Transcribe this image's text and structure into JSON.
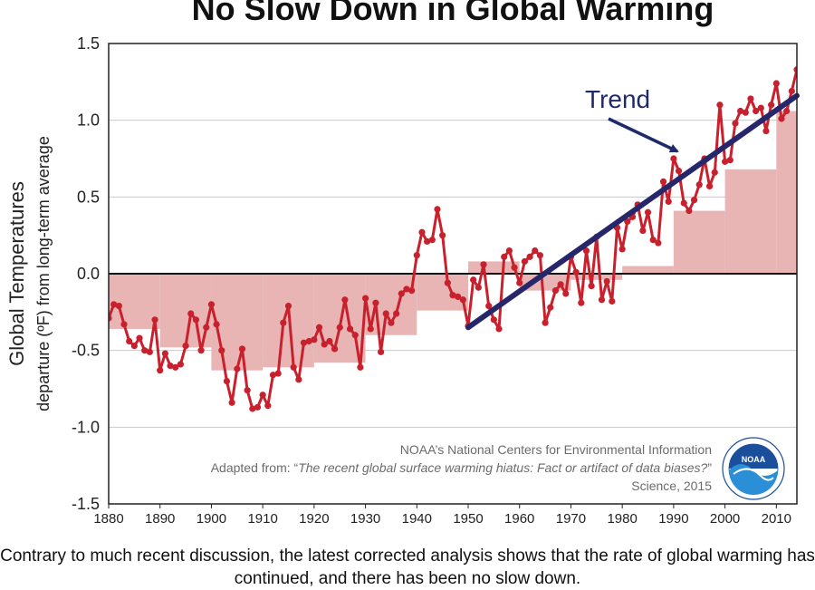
{
  "title": "No Slow Down in Global Warming",
  "caption": "Contrary to much recent discussion, the latest corrected analysis shows that the rate of global warming has continued, and there has been no slow down.",
  "credits": {
    "line1": "NOAA’s National Centers for Environmental Information",
    "line2_prefix": "Adapted from: “",
    "line2_italic": "The recent global surface warming hiatus: Fact or artifact of data biases?",
    "line2_suffix": "”",
    "line3": "Science, 2015"
  },
  "logo": {
    "icon": "noaa-logo",
    "text": "NOAA"
  },
  "colors": {
    "series": "#c8202c",
    "bars": "#e8b4b4",
    "trend": "#26266b",
    "grid": "#c8c8c8",
    "logo_blue": "#1b4f9c"
  },
  "chart_data": {
    "type": "line",
    "title": "No Slow Down in Global Warming",
    "ylabel": "Global Temperatures",
    "ylabel_sub": "departure (ºF) from long-term average",
    "xlabel": "",
    "xlim": [
      1880,
      2014
    ],
    "ylim": [
      -1.5,
      1.5
    ],
    "yticks": [
      1.5,
      1.0,
      0.5,
      0.0,
      -0.5,
      -1.0,
      -1.5
    ],
    "ytick_labels": [
      "1.5",
      "1.0",
      "0.5",
      "0.0",
      "-0.5",
      "-1.0",
      "-1.5"
    ],
    "xticks": [
      1880,
      1890,
      1900,
      1910,
      1920,
      1930,
      1940,
      1950,
      1960,
      1970,
      1980,
      1990,
      2000,
      2010
    ],
    "grid": true,
    "series": [
      {
        "name": "annual",
        "kind": "line+markers",
        "x_start": 1880,
        "values": [
          -0.29,
          -0.2,
          -0.21,
          -0.33,
          -0.44,
          -0.47,
          -0.42,
          -0.5,
          -0.51,
          -0.3,
          -0.63,
          -0.52,
          -0.6,
          -0.61,
          -0.59,
          -0.47,
          -0.26,
          -0.3,
          -0.5,
          -0.35,
          -0.2,
          -0.33,
          -0.5,
          -0.7,
          -0.84,
          -0.62,
          -0.49,
          -0.76,
          -0.88,
          -0.87,
          -0.79,
          -0.86,
          -0.66,
          -0.65,
          -0.32,
          -0.21,
          -0.61,
          -0.69,
          -0.45,
          -0.44,
          -0.43,
          -0.35,
          -0.46,
          -0.44,
          -0.49,
          -0.35,
          -0.17,
          -0.36,
          -0.4,
          -0.61,
          -0.16,
          -0.36,
          -0.19,
          -0.51,
          -0.26,
          -0.32,
          -0.26,
          -0.13,
          -0.1,
          -0.11,
          0.12,
          0.27,
          0.21,
          0.22,
          0.42,
          0.25,
          -0.06,
          -0.14,
          -0.15,
          -0.17,
          -0.34,
          -0.04,
          -0.09,
          0.06,
          -0.21,
          -0.3,
          -0.36,
          0.11,
          0.15,
          0.04,
          -0.06,
          0.08,
          0.11,
          0.15,
          0.12,
          -0.32,
          -0.22,
          -0.11,
          -0.07,
          -0.13,
          0.11,
          0.01,
          -0.19,
          0.15,
          -0.08,
          0.24,
          -0.17,
          -0.05,
          -0.18,
          0.3,
          0.16,
          0.34,
          0.37,
          0.45,
          0.28,
          0.4,
          0.22,
          0.2,
          0.6,
          0.47,
          0.75,
          0.67,
          0.46,
          0.41,
          0.48,
          0.58,
          0.75,
          0.57,
          0.66,
          1.1,
          0.73,
          0.74,
          0.98,
          1.06,
          1.05,
          1.14,
          1.06,
          1.08,
          0.93,
          1.1,
          1.24,
          1.01,
          1.06,
          1.19,
          1.33
        ]
      },
      {
        "name": "decadal average",
        "kind": "bars",
        "x_start": 1880,
        "width": 10,
        "values": [
          -0.36,
          -0.48,
          -0.63,
          -0.61,
          -0.58,
          -0.4,
          -0.24,
          0.08,
          -0.11,
          -0.04,
          0.05,
          0.41,
          0.68,
          1.06
        ]
      },
      {
        "name": "Trend",
        "kind": "linear",
        "x": [
          1950,
          2014
        ],
        "values": [
          -0.35,
          1.16
        ]
      }
    ],
    "annotations": [
      {
        "text": "Trend",
        "x": 1987,
        "y": 1.14,
        "arrow_to": [
          1992,
          0.78
        ]
      }
    ]
  }
}
